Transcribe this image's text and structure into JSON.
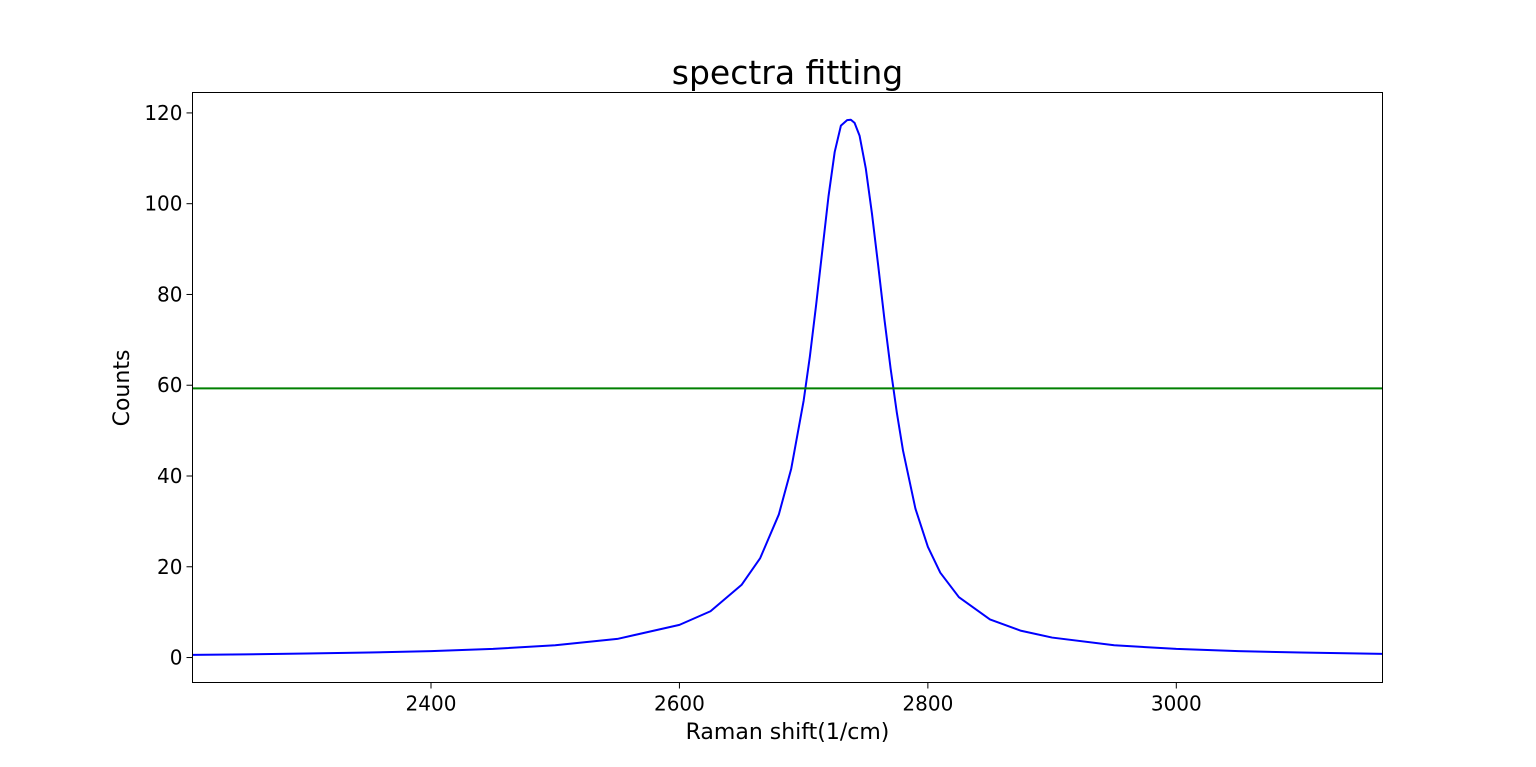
{
  "chart_data": {
    "type": "line",
    "title": "spectra fitting",
    "xlabel": "Raman shift(1/cm)",
    "ylabel": "Counts",
    "xlim": [
      2208,
      3166
    ],
    "ylim": [
      -5.5,
      124.5
    ],
    "xticks": [
      2400,
      2600,
      2800,
      3000
    ],
    "yticks": [
      0,
      20,
      40,
      60,
      80,
      100,
      120
    ],
    "grid": false,
    "legend": "none",
    "series": [
      {
        "color": "#0000ff",
        "x": [
          2208,
          2250,
          2300,
          2350,
          2400,
          2450,
          2500,
          2550,
          2600,
          2625,
          2650,
          2665,
          2680,
          2690,
          2700,
          2705,
          2710,
          2715,
          2720,
          2725,
          2730,
          2735,
          2738,
          2741,
          2745,
          2750,
          2755,
          2760,
          2765,
          2770,
          2775,
          2780,
          2790,
          2800,
          2810,
          2825,
          2850,
          2875,
          2900,
          2950,
          3000,
          3050,
          3100,
          3166
        ],
        "values": [
          0.6,
          0.7,
          0.9,
          1.1,
          1.4,
          1.9,
          2.7,
          4.1,
          7.2,
          10.2,
          16.0,
          21.9,
          31.5,
          41.6,
          56.6,
          66.3,
          77.6,
          89.6,
          101.6,
          111.4,
          117.2,
          118.4,
          118.5,
          117.8,
          115.0,
          107.8,
          97.8,
          86.4,
          74.6,
          63.7,
          54.0,
          45.6,
          32.8,
          24.4,
          18.7,
          13.3,
          8.4,
          5.9,
          4.4,
          2.7,
          1.9,
          1.4,
          1.1,
          0.8
        ]
      },
      {
        "color": "#008000",
        "x": [
          2208,
          3166
        ],
        "values": [
          59.3,
          59.3
        ]
      }
    ]
  }
}
